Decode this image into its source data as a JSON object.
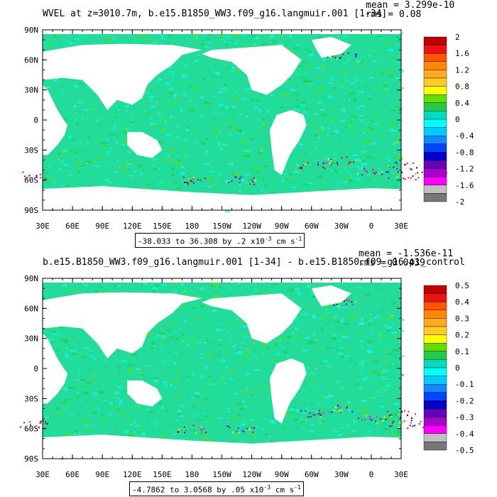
{
  "panels": [
    {
      "title": "WVEL at z=3010.7m, b.e15.B1850_WW3.f09_g16.langmuir.001 [1-34]",
      "mean_label": "mean = 3.299e-10",
      "rms_label": "rms = 0.08",
      "range_text": "-38.033 to 36.308 by .2 x10",
      "range_exp": "-3",
      "range_unit": " cm s",
      "range_unit_exp": "-1",
      "colorbar_labels": [
        "2",
        "1.6",
        "1.2",
        "0.8",
        "0.4",
        "0",
        "-0.4",
        "-0.8",
        "-1.2",
        "-1.6",
        "-2"
      ]
    },
    {
      "title": "b.e15.B1850_WW3.f09_g16.langmuir.001 [1-34] - b.e15.B1850.f09_g16.pi_control",
      "mean_label": "mean = -1.536e-11",
      "rms_label": "rms = 0.0439",
      "range_text": "-4.7862 to 3.0568 by .05 x10",
      "range_exp": "-3",
      "range_unit": " cm s",
      "range_unit_exp": "-1",
      "colorbar_labels": [
        "0.5",
        "0.4",
        "0.3",
        "0.2",
        "0.1",
        "0",
        "-0.1",
        "-0.2",
        "-0.3",
        "-0.4",
        "-0.5"
      ]
    }
  ],
  "lat_labels": [
    "90N",
    "60N",
    "30N",
    "0",
    "30S",
    "60S",
    "90S"
  ],
  "lon_labels": [
    "30E",
    "60E",
    "90E",
    "120E",
    "150E",
    "180",
    "150W",
    "120W",
    "90W",
    "60W",
    "30W",
    "0",
    "30E"
  ],
  "colorbar_colors": [
    "#c00000",
    "#ee1111",
    "#ff5500",
    "#ff8800",
    "#ffaa22",
    "#ffcc22",
    "#ffff00",
    "#66dd00",
    "#22cc44",
    "#00ddbb",
    "#00ffff",
    "#00ccff",
    "#1188ff",
    "#0044ff",
    "#0000cc",
    "#6600bb",
    "#aa00cc",
    "#ff00ff",
    "#c0c0c0",
    "#777777"
  ],
  "colors": {
    "ocean_main": "#22dd99",
    "ocean_alt": "#33eedd",
    "land": "#ffffff"
  }
}
